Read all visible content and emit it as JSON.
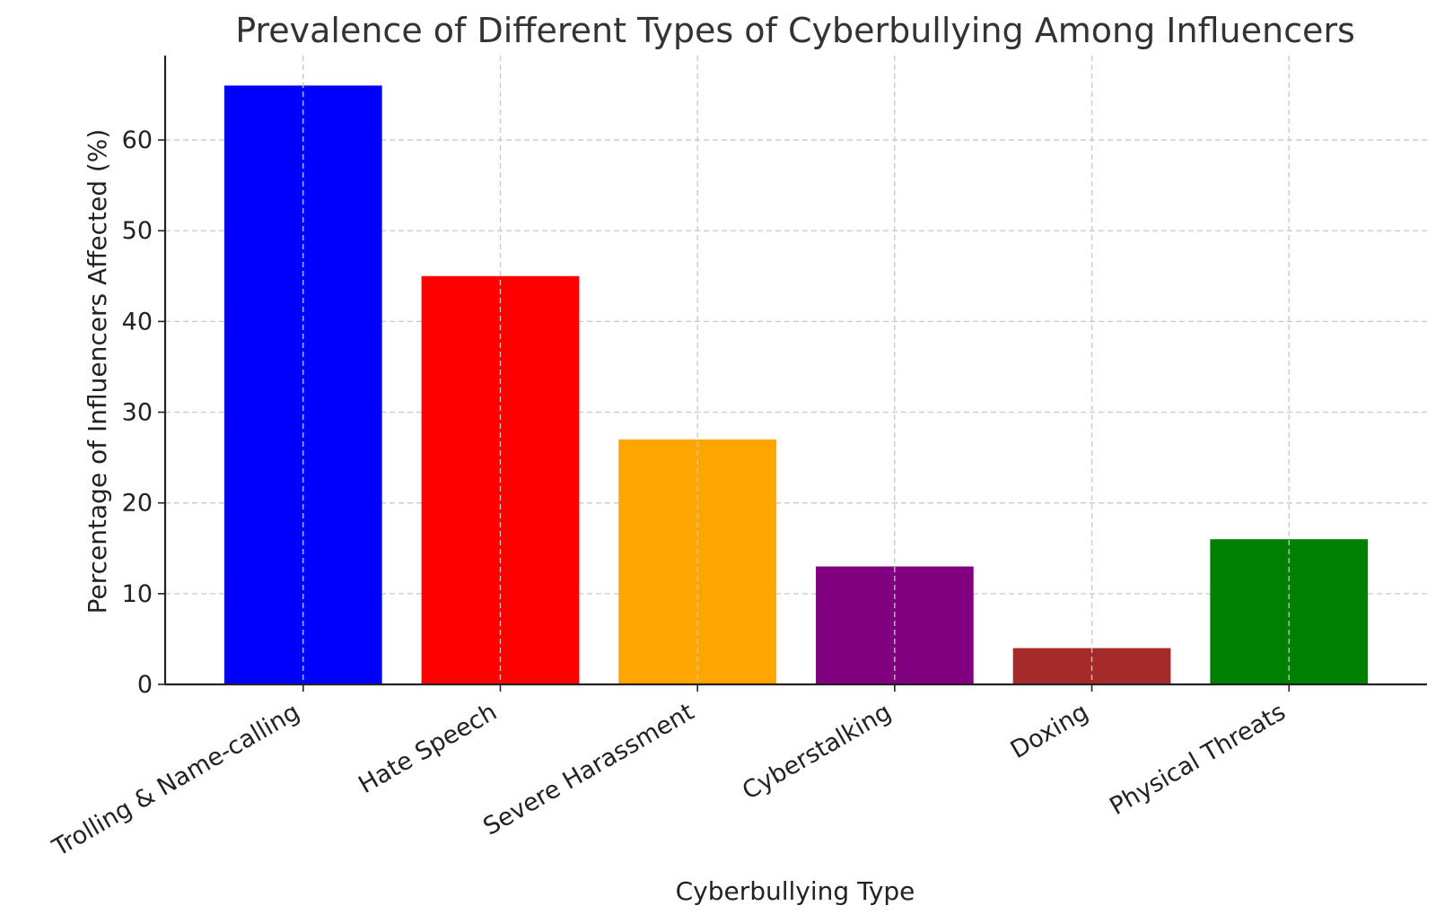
{
  "chart_data": {
    "type": "bar",
    "title": "Prevalence of Different Types of Cyberbullying Among Influencers",
    "xlabel": "Cyberbullying Type",
    "ylabel": "Percentage of Influencers Affected (%)",
    "categories": [
      "Trolling & Name-calling",
      "Hate Speech",
      "Severe Harassment",
      "Cyberstalking",
      "Doxing",
      "Physical Threats"
    ],
    "values": [
      66,
      45,
      27,
      13,
      4,
      16
    ],
    "colors": [
      "#0000ff",
      "#ff0000",
      "#ffa500",
      "#800080",
      "#a52a2a",
      "#008000"
    ],
    "yticks": [
      0,
      10,
      20,
      30,
      40,
      50,
      60
    ],
    "ylim": [
      0,
      69.3
    ],
    "grid": true,
    "x_tick_rotation": "-30deg"
  }
}
